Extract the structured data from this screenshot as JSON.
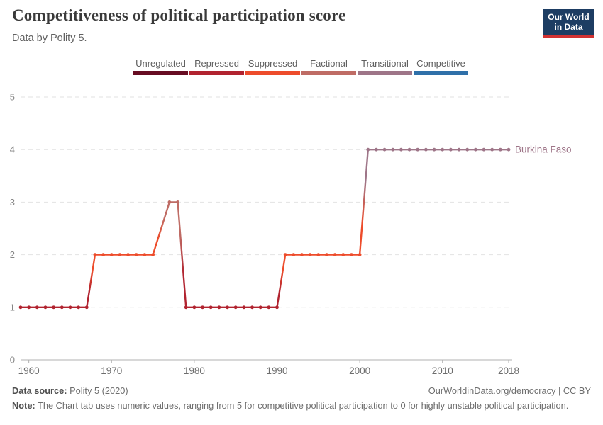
{
  "header": {
    "title": "Competitiveness of political participation score",
    "subtitle": "Data by Polity 5.",
    "logo": {
      "line1": "Our World",
      "line2": "in Data",
      "bg": "#1d3d63",
      "accent": "#d23232"
    }
  },
  "legend": {
    "items": [
      {
        "label": "Unregulated",
        "color": "#670c22"
      },
      {
        "label": "Repressed",
        "color": "#b1232f"
      },
      {
        "label": "Suppressed",
        "color": "#ed4c2b"
      },
      {
        "label": "Factional",
        "color": "#bf6c65"
      },
      {
        "label": "Transitional",
        "color": "#9e7588"
      },
      {
        "label": "Competitive",
        "color": "#2f70a9"
      }
    ]
  },
  "chart_data": {
    "type": "line",
    "title": "Competitiveness of political participation score",
    "subtitle": "Data by Polity 5.",
    "xlim": [
      1959,
      2018
    ],
    "ylim": [
      0,
      5
    ],
    "x_ticks": [
      1960,
      1970,
      1980,
      1990,
      2000,
      2010,
      2018
    ],
    "y_ticks": [
      0,
      1,
      2,
      3,
      4,
      5
    ],
    "grid": "horizontal-dashed",
    "value_colors": {
      "0": "#670c22",
      "1": "#b1232f",
      "2": "#ed4c2b",
      "3": "#bf6c65",
      "4": "#9e7588",
      "5": "#2f70a9"
    },
    "series": [
      {
        "name": "Burkina Faso",
        "label_color": "#9e7588",
        "points": [
          [
            1959,
            1
          ],
          [
            1960,
            1
          ],
          [
            1961,
            1
          ],
          [
            1962,
            1
          ],
          [
            1963,
            1
          ],
          [
            1964,
            1
          ],
          [
            1965,
            1
          ],
          [
            1966,
            1
          ],
          [
            1967,
            1
          ],
          [
            1968,
            2
          ],
          [
            1969,
            2
          ],
          [
            1970,
            2
          ],
          [
            1971,
            2
          ],
          [
            1972,
            2
          ],
          [
            1973,
            2
          ],
          [
            1974,
            2
          ],
          [
            1975,
            2
          ],
          [
            1976,
            null
          ],
          [
            1977,
            3
          ],
          [
            1978,
            3
          ],
          [
            1979,
            1
          ],
          [
            1980,
            1
          ],
          [
            1981,
            1
          ],
          [
            1982,
            1
          ],
          [
            1983,
            1
          ],
          [
            1984,
            1
          ],
          [
            1985,
            1
          ],
          [
            1986,
            1
          ],
          [
            1987,
            1
          ],
          [
            1988,
            1
          ],
          [
            1989,
            1
          ],
          [
            1990,
            1
          ],
          [
            1991,
            2
          ],
          [
            1992,
            2
          ],
          [
            1993,
            2
          ],
          [
            1994,
            2
          ],
          [
            1995,
            2
          ],
          [
            1996,
            2
          ],
          [
            1997,
            2
          ],
          [
            1998,
            2
          ],
          [
            1999,
            2
          ],
          [
            2000,
            2
          ],
          [
            2001,
            4
          ],
          [
            2002,
            4
          ],
          [
            2003,
            4
          ],
          [
            2004,
            4
          ],
          [
            2005,
            4
          ],
          [
            2006,
            4
          ],
          [
            2007,
            4
          ],
          [
            2008,
            4
          ],
          [
            2009,
            4
          ],
          [
            2010,
            4
          ],
          [
            2011,
            4
          ],
          [
            2012,
            4
          ],
          [
            2013,
            4
          ],
          [
            2014,
            4
          ],
          [
            2015,
            4
          ],
          [
            2016,
            4
          ],
          [
            2017,
            4
          ],
          [
            2018,
            4
          ]
        ]
      }
    ]
  },
  "footer": {
    "source_label": "Data source:",
    "source_value": "Polity 5 (2020)",
    "link": "OurWorldinData.org/democracy | CC BY",
    "note_label": "Note:",
    "note_text": "The Chart tab uses numeric values, ranging from 5 for competitive political participation to 0 for highly unstable political participation."
  }
}
